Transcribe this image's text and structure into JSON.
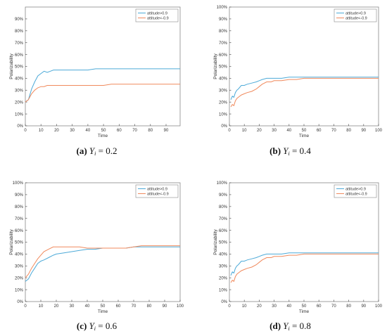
{
  "colors": {
    "series1": "#4DAAD8",
    "series2": "#F08A5D",
    "axis": "#555555",
    "frame": "#888888"
  },
  "captions": [
    {
      "letter": "(a)",
      "symbol": "Y",
      "subscript": "i",
      "value": " = 0.2"
    },
    {
      "letter": "(b)",
      "symbol": "Y",
      "subscript": "i",
      "value": " = 0.4"
    },
    {
      "letter": "(c)",
      "symbol": "Y",
      "subscript": "i",
      "value": " = 0.6"
    },
    {
      "letter": "(d)",
      "symbol": "Y",
      "subscript": "i",
      "value": " = 0.8"
    }
  ],
  "chart_data": [
    {
      "type": "line",
      "xlabel": "Time",
      "ylabel": "Polarizability",
      "xlim": [
        0,
        99
      ],
      "ylim": [
        0,
        100
      ],
      "xticks": [
        0,
        10,
        20,
        30,
        40,
        50,
        60,
        70,
        80,
        90
      ],
      "yticks": [
        0,
        10,
        20,
        30,
        40,
        50,
        60,
        70,
        80,
        90
      ],
      "ytick_format": "percent",
      "legend": "top-right",
      "series": [
        {
          "name": "attitude>0.9",
          "x": [
            0,
            2,
            4,
            6,
            8,
            10,
            12,
            14,
            16,
            18,
            20,
            30,
            40,
            45,
            50,
            99
          ],
          "y": [
            20,
            22,
            31,
            37,
            42,
            44,
            46,
            45,
            46,
            47,
            47,
            47,
            47,
            48,
            48,
            48
          ]
        },
        {
          "name": "attitude<-0.9",
          "x": [
            0,
            2,
            4,
            6,
            8,
            10,
            12,
            14,
            16,
            18,
            20,
            30,
            40,
            50,
            55,
            99
          ],
          "y": [
            20,
            22,
            27,
            30,
            32,
            33,
            33,
            34,
            34,
            34,
            34,
            34,
            34,
            34,
            35,
            35
          ]
        }
      ]
    },
    {
      "type": "line",
      "xlabel": "Time",
      "ylabel": "Polarizability",
      "xlim": [
        0,
        100
      ],
      "ylim": [
        0,
        100
      ],
      "xticks": [
        0,
        10,
        20,
        30,
        40,
        50,
        60,
        70,
        80,
        90,
        100
      ],
      "yticks": [
        0,
        10,
        20,
        30,
        40,
        50,
        60,
        70,
        80,
        90,
        100
      ],
      "ytick_format": "percent",
      "legend": "top-right",
      "series": [
        {
          "name": "attitude>0.9",
          "x": [
            1,
            2,
            3,
            4,
            5,
            6,
            8,
            10,
            12,
            15,
            18,
            20,
            22,
            25,
            28,
            30,
            33,
            35,
            40,
            50,
            100
          ],
          "y": [
            22,
            25,
            24,
            28,
            30,
            31,
            34,
            34,
            35,
            36,
            37,
            38,
            39,
            40,
            40,
            40,
            40,
            40,
            41,
            41,
            41
          ]
        },
        {
          "name": "attitude<-0.9",
          "x": [
            1,
            2,
            3,
            4,
            5,
            6,
            8,
            10,
            12,
            15,
            18,
            20,
            22,
            25,
            28,
            30,
            35,
            40,
            45,
            50,
            100
          ],
          "y": [
            16,
            18,
            17,
            21,
            23,
            24,
            26,
            27,
            28,
            29,
            31,
            33,
            35,
            37,
            37,
            38,
            38,
            39,
            39,
            40,
            40
          ]
        }
      ]
    },
    {
      "type": "line",
      "xlabel": "Time",
      "ylabel": "Polarizability",
      "xlim": [
        0,
        100
      ],
      "ylim": [
        0,
        100
      ],
      "xticks": [
        0,
        10,
        20,
        30,
        40,
        50,
        60,
        70,
        80,
        90,
        100
      ],
      "yticks": [
        0,
        10,
        20,
        30,
        40,
        50,
        60,
        70,
        80,
        90,
        100
      ],
      "ytick_format": "percent",
      "legend": "top-right",
      "series": [
        {
          "name": "attitude>0.9",
          "x": [
            0,
            2,
            4,
            6,
            8,
            10,
            12,
            15,
            18,
            20,
            25,
            30,
            35,
            40,
            45,
            50,
            55,
            60,
            65,
            70,
            75,
            80,
            90,
            100
          ],
          "y": [
            17,
            19,
            24,
            28,
            32,
            34,
            35,
            37,
            39,
            40,
            41,
            42,
            43,
            44,
            44,
            45,
            45,
            45,
            45,
            46,
            46,
            46,
            46,
            46
          ]
        },
        {
          "name": "attitude<-0.9",
          "x": [
            0,
            2,
            4,
            6,
            8,
            10,
            12,
            15,
            18,
            20,
            25,
            30,
            35,
            40,
            45,
            50,
            55,
            60,
            65,
            70,
            75,
            80,
            90,
            100
          ],
          "y": [
            20,
            23,
            28,
            32,
            36,
            39,
            42,
            44,
            46,
            46,
            46,
            46,
            46,
            45,
            45,
            45,
            45,
            45,
            45,
            46,
            47,
            47,
            47,
            47
          ]
        }
      ]
    },
    {
      "type": "line",
      "xlabel": "Time",
      "ylabel": "Polarizability",
      "xlim": [
        0,
        100
      ],
      "ylim": [
        0,
        100
      ],
      "xticks": [
        0,
        10,
        20,
        30,
        40,
        50,
        60,
        70,
        80,
        90,
        100
      ],
      "yticks": [
        0,
        10,
        20,
        30,
        40,
        50,
        60,
        70,
        80,
        90,
        100
      ],
      "ytick_format": "percent",
      "legend": "top-right",
      "series": [
        {
          "name": "attitude>0.9",
          "x": [
            1,
            2,
            3,
            4,
            5,
            6,
            8,
            10,
            12,
            15,
            18,
            20,
            22,
            25,
            28,
            30,
            33,
            35,
            40,
            50,
            100
          ],
          "y": [
            22,
            25,
            24,
            28,
            30,
            31,
            34,
            34,
            35,
            36,
            37,
            38,
            39,
            40,
            40,
            40,
            40,
            40,
            41,
            41,
            41
          ]
        },
        {
          "name": "attitude<-0.9",
          "x": [
            1,
            2,
            3,
            4,
            5,
            6,
            8,
            10,
            12,
            15,
            18,
            20,
            22,
            25,
            28,
            30,
            35,
            40,
            45,
            50,
            100
          ],
          "y": [
            16,
            18,
            17,
            21,
            23,
            24,
            26,
            27,
            28,
            29,
            31,
            33,
            35,
            37,
            37,
            38,
            38,
            39,
            39,
            40,
            40
          ]
        }
      ]
    }
  ]
}
